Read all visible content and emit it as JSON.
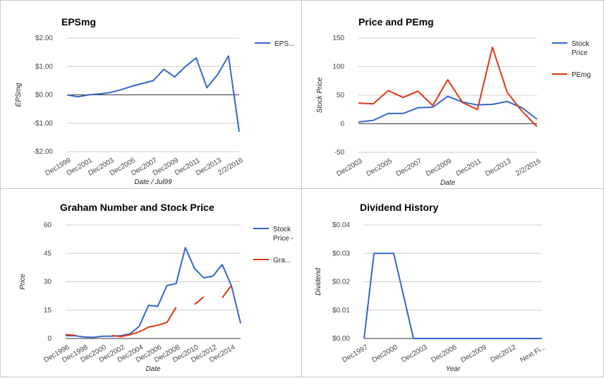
{
  "colors": {
    "blue": "#3366cc",
    "red": "#dc3912",
    "grid": "#cccccc",
    "zero": "#333333"
  },
  "chart_data": [
    {
      "id": "eps",
      "type": "line",
      "title": "EPSmg",
      "xlabel": "Date / Jul99",
      "ylabel": "EPSmg",
      "ylim": [
        -2,
        2
      ],
      "yticks": [
        2,
        1,
        0,
        -1,
        -2
      ],
      "ytick_labels": [
        "$2.00",
        "$1.00",
        "$0.00",
        "-$1.00",
        "-$2.00"
      ],
      "xtick_labels": [
        "Dec1999",
        "Dec2001",
        "Dec2003",
        "Dec2005",
        "Dec2007",
        "Dec2009",
        "Dec2011",
        "Dec2013",
        "2/2/2016"
      ],
      "xtick_index": [
        0,
        2,
        4,
        6,
        8,
        10,
        12,
        14,
        16
      ],
      "n_points": 17,
      "legend_position": "right",
      "series": [
        {
          "name": "EPS...",
          "color": "blue",
          "values": [
            0.0,
            -0.07,
            0.0,
            0.03,
            0.08,
            0.18,
            0.3,
            0.4,
            0.5,
            0.9,
            0.63,
            1.0,
            1.3,
            0.25,
            0.72,
            1.37,
            -1.3
          ]
        }
      ]
    },
    {
      "id": "pe",
      "type": "line",
      "title": "Price and PEmg",
      "xlabel": "Date",
      "ylabel": "Stock Price",
      "ylim": [
        -50,
        150
      ],
      "yticks": [
        150,
        100,
        50,
        0,
        -50
      ],
      "ytick_labels": [
        "150",
        "100",
        "50",
        "0",
        "-50"
      ],
      "xtick_labels": [
        "Dec2003",
        "Dec2005",
        "Dec2007",
        "Dec2009",
        "Dec2011",
        "Dec2013",
        "2/2/2016"
      ],
      "xtick_index": [
        0,
        2,
        4,
        6,
        8,
        10,
        12
      ],
      "n_points": 13,
      "legend_position": "right",
      "series": [
        {
          "name": "Stock Price",
          "legend_lines": [
            "Stock",
            "Price"
          ],
          "color": "blue",
          "values": [
            3,
            6,
            18,
            18,
            28,
            29,
            48,
            38,
            33,
            34,
            39,
            28,
            8
          ]
        },
        {
          "name": "PEmg",
          "legend_lines": [
            "PEmg"
          ],
          "color": "red",
          "values": [
            36,
            35,
            58,
            46,
            57,
            32,
            77,
            37,
            25,
            134,
            55,
            22,
            -5
          ]
        }
      ]
    },
    {
      "id": "graham",
      "type": "line",
      "title": "Graham Number and Stock Price",
      "xlabel": "Date",
      "ylabel": "Price",
      "ylim": [
        0,
        60
      ],
      "yticks": [
        60,
        45,
        30,
        15,
        0
      ],
      "ytick_labels": [
        "60",
        "45",
        "30",
        "15",
        "0"
      ],
      "xtick_labels": [
        "Dec1996",
        "Dec1998",
        "Dec2000",
        "Dec2002",
        "Dec2004",
        "Dec2006",
        "Dec2008",
        "Dec2010",
        "Dec2012",
        "Dec2014"
      ],
      "xtick_index": [
        0,
        2,
        4,
        6,
        8,
        10,
        12,
        14,
        16,
        18
      ],
      "n_points": 20,
      "legend_position": "right",
      "series": [
        {
          "name": "Stock Price -",
          "legend_lines": [
            "Stock",
            "Price -"
          ],
          "color": "blue",
          "values": [
            1.5,
            1.5,
            0.8,
            0.6,
            1.2,
            1.2,
            1.5,
            2.5,
            6.5,
            17.5,
            17.0,
            28.0,
            29.0,
            48.0,
            37.0,
            32.0,
            33.0,
            39.0,
            28.0,
            8.0
          ]
        },
        {
          "name": "Gra...",
          "legend_lines": [
            "Gra..."
          ],
          "color": "red",
          "values": [
            2.0,
            1.7,
            null,
            1.3,
            null,
            1.6,
            1.0,
            2.0,
            3.5,
            6.0,
            7.0,
            8.5,
            16.5,
            null,
            18.0,
            22.0,
            null,
            21.5,
            28.0,
            null
          ]
        }
      ]
    },
    {
      "id": "dividend",
      "type": "line",
      "title": "Dividend History",
      "xlabel": "Year",
      "ylabel": "Dividend",
      "ylim": [
        0,
        0.04
      ],
      "yticks": [
        0.04,
        0.03,
        0.02,
        0.01,
        0.0
      ],
      "ytick_labels": [
        "$0.04",
        "$0.03",
        "$0.02",
        "$0.01",
        "$0.00"
      ],
      "xtick_labels": [
        "Dec1997",
        "Dec2000",
        "Dec2003",
        "Dec2006",
        "Dec2009",
        "Dec2012",
        "Next Fi..."
      ],
      "xtick_index": [
        0,
        3,
        6,
        9,
        12,
        15,
        18
      ],
      "n_points": 19,
      "legend_position": "none",
      "series": [
        {
          "name": "",
          "color": "blue",
          "values": [
            0.0,
            0.03,
            0.03,
            0.03,
            0.015,
            0.0,
            0.0,
            0.0,
            0.0,
            0.0,
            0.0,
            0.0,
            0.0,
            0.0,
            0.0,
            0.0,
            0.0,
            0.0,
            0.0
          ]
        }
      ]
    }
  ]
}
